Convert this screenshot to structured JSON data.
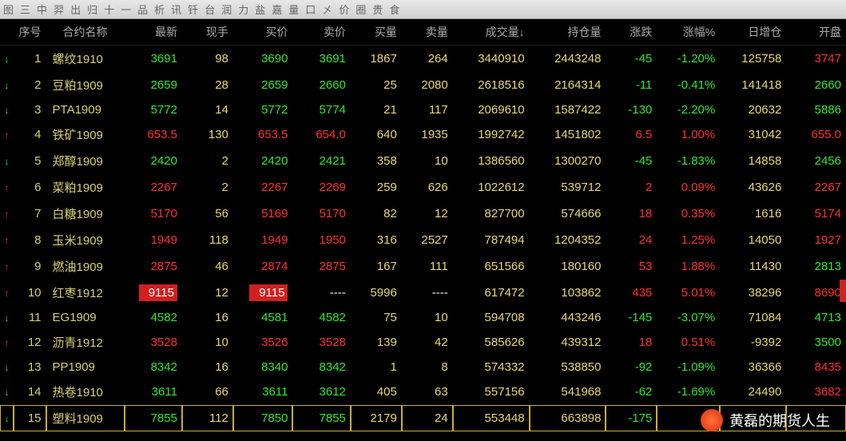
{
  "toolbar": [
    "图",
    "三",
    "中",
    "羿",
    "出",
    "归",
    "十",
    "一",
    "品",
    "析",
    "讯",
    "钎",
    "台",
    "润",
    "力",
    "盐",
    "嘉",
    "量",
    "口",
    "㐅",
    "价",
    "圈",
    "贵",
    "食"
  ],
  "headers": {
    "seq": "序号",
    "name": "合约名称",
    "last": "最新",
    "hand": "现手",
    "bid": "买价",
    "ask": "卖价",
    "bidvol": "买量",
    "askvol": "卖量",
    "vol": "成交量↓",
    "oi": "持仓量",
    "chg": "涨跌",
    "chgpct": "涨幅%",
    "oichg": "日增仓",
    "open": "开盘"
  },
  "colors": {
    "up": "#ff3030",
    "down": "#30e830",
    "neutral": "#e8d870",
    "white": "#f0f0f0",
    "hl_bg": "#d02020"
  },
  "watermark": "黄磊的期货人生",
  "rows": [
    {
      "dir": "down",
      "seq": 1,
      "name": "螺纹1910",
      "last": "3691",
      "last_c": "green",
      "hand": "98",
      "bid": "3690",
      "bid_c": "green",
      "ask": "3691",
      "ask_c": "green",
      "bidvol": "1867",
      "askvol": "264",
      "vol": "3440910",
      "oi": "2443248",
      "chg": "-45",
      "chg_c": "green",
      "chgpct": "-1.20%",
      "chgpct_c": "green",
      "oichg": "125758",
      "open": "3747",
      "open_c": "red"
    },
    {
      "dir": "down",
      "seq": 2,
      "name": "豆粕1909",
      "last": "2659",
      "last_c": "green",
      "hand": "28",
      "bid": "2659",
      "bid_c": "green",
      "ask": "2660",
      "ask_c": "green",
      "bidvol": "25",
      "askvol": "2080",
      "vol": "2618516",
      "oi": "2164314",
      "chg": "-11",
      "chg_c": "green",
      "chgpct": "-0.41%",
      "chgpct_c": "green",
      "oichg": "141418",
      "open": "2660",
      "open_c": "green"
    },
    {
      "dir": "down",
      "seq": 3,
      "name": "PTA1909",
      "last": "5772",
      "last_c": "green",
      "hand": "14",
      "bid": "5772",
      "bid_c": "green",
      "ask": "5774",
      "ask_c": "green",
      "bidvol": "21",
      "askvol": "117",
      "vol": "2069610",
      "oi": "1587422",
      "chg": "-130",
      "chg_c": "green",
      "chgpct": "-2.20%",
      "chgpct_c": "green",
      "oichg": "20632",
      "open": "5886",
      "open_c": "green"
    },
    {
      "dir": "up",
      "seq": 4,
      "name": "铁矿1909",
      "last": "653.5",
      "last_c": "red",
      "hand": "130",
      "bid": "653.5",
      "bid_c": "red",
      "ask": "654.0",
      "ask_c": "red",
      "bidvol": "640",
      "askvol": "1935",
      "vol": "1992742",
      "oi": "1451802",
      "chg": "6.5",
      "chg_c": "red",
      "chgpct": "1.00%",
      "chgpct_c": "red",
      "oichg": "31042",
      "open": "655.0",
      "open_c": "red"
    },
    {
      "dir": "down",
      "seq": 5,
      "name": "郑醇1909",
      "last": "2420",
      "last_c": "green",
      "hand": "2",
      "bid": "2420",
      "bid_c": "green",
      "ask": "2421",
      "ask_c": "green",
      "bidvol": "358",
      "askvol": "10",
      "vol": "1386560",
      "oi": "1300270",
      "chg": "-45",
      "chg_c": "green",
      "chgpct": "-1.83%",
      "chgpct_c": "green",
      "oichg": "14858",
      "open": "2456",
      "open_c": "green"
    },
    {
      "dir": "up",
      "seq": 6,
      "name": "菜粕1909",
      "last": "2267",
      "last_c": "red",
      "hand": "2",
      "bid": "2267",
      "bid_c": "red",
      "ask": "2269",
      "ask_c": "red",
      "bidvol": "259",
      "askvol": "626",
      "vol": "1022612",
      "oi": "539712",
      "chg": "2",
      "chg_c": "red",
      "chgpct": "0.09%",
      "chgpct_c": "red",
      "oichg": "43626",
      "open": "2267",
      "open_c": "red"
    },
    {
      "dir": "up",
      "seq": 7,
      "name": "白糖1909",
      "last": "5170",
      "last_c": "red",
      "hand": "56",
      "bid": "5169",
      "bid_c": "red",
      "ask": "5170",
      "ask_c": "red",
      "bidvol": "82",
      "askvol": "12",
      "vol": "827700",
      "oi": "574666",
      "chg": "18",
      "chg_c": "red",
      "chgpct": "0.35%",
      "chgpct_c": "red",
      "oichg": "1616",
      "open": "5174",
      "open_c": "red"
    },
    {
      "dir": "up",
      "seq": 8,
      "name": "玉米1909",
      "last": "1949",
      "last_c": "red",
      "hand": "118",
      "bid": "1949",
      "bid_c": "red",
      "ask": "1950",
      "ask_c": "red",
      "bidvol": "316",
      "askvol": "2527",
      "vol": "787494",
      "oi": "1204352",
      "chg": "24",
      "chg_c": "red",
      "chgpct": "1.25%",
      "chgpct_c": "red",
      "oichg": "14050",
      "open": "1927",
      "open_c": "red"
    },
    {
      "dir": "up",
      "seq": 9,
      "name": "燃油1909",
      "last": "2875",
      "last_c": "red",
      "hand": "46",
      "bid": "2874",
      "bid_c": "red",
      "ask": "2875",
      "ask_c": "red",
      "bidvol": "167",
      "askvol": "111",
      "vol": "651566",
      "oi": "180160",
      "chg": "53",
      "chg_c": "red",
      "chgpct": "1.88%",
      "chgpct_c": "red",
      "oichg": "11430",
      "open": "2813",
      "open_c": "green"
    },
    {
      "dir": "up",
      "seq": 10,
      "name": "红枣1912",
      "last": "9115",
      "last_c": "red",
      "last_hl": true,
      "hand": "12",
      "bid": "9115",
      "bid_c": "red",
      "bid_hl": true,
      "ask": "----",
      "ask_c": "white",
      "bidvol": "5996",
      "askvol": "----",
      "askvol_c": "white",
      "vol": "617472",
      "oi": "103862",
      "chg": "435",
      "chg_c": "red",
      "chgpct": "5.01%",
      "chgpct_c": "red",
      "oichg": "38296",
      "open": "8690",
      "open_c": "red"
    },
    {
      "dir": "down",
      "seq": 11,
      "name": "EG1909",
      "last": "4582",
      "last_c": "green",
      "hand": "16",
      "bid": "4581",
      "bid_c": "green",
      "ask": "4582",
      "ask_c": "green",
      "bidvol": "75",
      "askvol": "10",
      "vol": "594708",
      "oi": "443246",
      "chg": "-145",
      "chg_c": "green",
      "chgpct": "-3.07%",
      "chgpct_c": "green",
      "oichg": "71084",
      "open": "4713",
      "open_c": "green"
    },
    {
      "dir": "up",
      "seq": 12,
      "name": "沥青1912",
      "last": "3528",
      "last_c": "red",
      "hand": "10",
      "bid": "3526",
      "bid_c": "red",
      "ask": "3528",
      "ask_c": "red",
      "bidvol": "139",
      "askvol": "42",
      "vol": "585626",
      "oi": "439312",
      "chg": "18",
      "chg_c": "red",
      "chgpct": "0.51%",
      "chgpct_c": "red",
      "oichg": "-9392",
      "open": "3500",
      "open_c": "green"
    },
    {
      "dir": "down",
      "seq": 13,
      "name": "PP1909",
      "last": "8342",
      "last_c": "green",
      "hand": "16",
      "bid": "8340",
      "bid_c": "green",
      "ask": "8342",
      "ask_c": "green",
      "bidvol": "1",
      "askvol": "8",
      "vol": "574332",
      "oi": "538850",
      "chg": "-92",
      "chg_c": "green",
      "chgpct": "-1.09%",
      "chgpct_c": "green",
      "oichg": "36366",
      "open": "8435",
      "open_c": "red"
    },
    {
      "dir": "down",
      "seq": 14,
      "name": "热卷1910",
      "last": "3611",
      "last_c": "green",
      "hand": "66",
      "bid": "3611",
      "bid_c": "green",
      "ask": "3612",
      "ask_c": "green",
      "bidvol": "405",
      "askvol": "63",
      "vol": "557156",
      "oi": "541968",
      "chg": "-62",
      "chg_c": "green",
      "chgpct": "-1.69%",
      "chgpct_c": "green",
      "oichg": "24490",
      "open": "3682",
      "open_c": "red"
    },
    {
      "dir": "down",
      "seq": 15,
      "name": "塑料1909",
      "last": "7855",
      "last_c": "green",
      "hand": "112",
      "bid": "7850",
      "bid_c": "green",
      "ask": "7855",
      "ask_c": "green",
      "bidvol": "2179",
      "askvol": "24",
      "vol": "553448",
      "oi": "663898",
      "chg": "-175",
      "chg_c": "green",
      "chgpct": "",
      "chgpct_c": "green",
      "oichg": "",
      "open": "",
      "open_c": "green",
      "selected": true
    }
  ]
}
